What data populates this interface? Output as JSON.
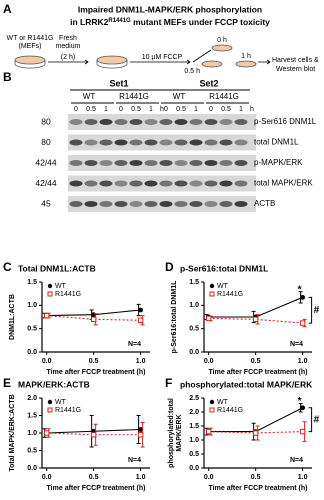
{
  "panel_a": {
    "label": "A",
    "title_line1": "Impaired DNM1L-MAPK/ERK phosphorylation",
    "title_line2": {
      "pre": "in LRRK2",
      "sup": "R1441G",
      "post": " mutant MEFs under FCCP toxicity"
    },
    "diagram": {
      "cells": [
        "WT or R1441G",
        "(MEFs)"
      ],
      "medium": [
        "Fresh",
        "medium",
        "(2 h)"
      ],
      "treatment": "10 µM FCCP",
      "times": [
        "0 h",
        "0.5 h",
        "1 h"
      ],
      "harvest": [
        "Harvest cells &",
        "Western blot"
      ]
    }
  },
  "panel_b": {
    "label": "B",
    "sets": [
      {
        "name": "Set1",
        "groups": [
          {
            "name": "WT",
            "lanes": [
              "0",
              "0.5",
              "1"
            ]
          },
          {
            "name": "R1441G",
            "lanes": [
              "0",
              "0.5",
              "1"
            ],
            "unit": "h"
          }
        ]
      },
      {
        "name": "Set2",
        "groups": [
          {
            "name": "WT",
            "lanes": [
              "0",
              "0.5",
              "1"
            ]
          },
          {
            "name": "R1441G",
            "lanes": [
              "0",
              "0.5",
              "1"
            ],
            "unit": "h"
          }
        ]
      }
    ],
    "rows": [
      {
        "mw": "80",
        "name": "p-Ser616 DNM1L"
      },
      {
        "mw": "80",
        "name": "total DNM1L"
      },
      {
        "mw": "42/44",
        "name": "p-MAPK/ERK"
      },
      {
        "mw": "42/44",
        "name": "total MAPK/ERK"
      },
      {
        "mw": "45",
        "name": "ACTB"
      }
    ]
  },
  "chart_data": [
    {
      "type": "line",
      "label": "C",
      "title": "Total DNM1L:ACTB",
      "y_label": "DNM1L:ACTB",
      "x_label": "Time after FCCP treatment (h)",
      "x": [
        0,
        0.5,
        1
      ],
      "xlim": [
        -0.05,
        1.1
      ],
      "xticks": [
        {
          "value": 0,
          "label": "0.0"
        },
        {
          "value": 0.5,
          "label": "0.5"
        },
        {
          "value": 1,
          "label": "1.0"
        }
      ],
      "ylim": [
        0,
        1.5
      ],
      "yticks": [
        {
          "value": 0,
          "label": "0.0"
        },
        {
          "value": 0.5,
          "label": "0.5"
        },
        {
          "value": 1,
          "label": "1.0"
        },
        {
          "value": 1.5,
          "label": "1.5"
        }
      ],
      "series": [
        {
          "name": "WT",
          "color": "#000000",
          "values": [
            0.78,
            0.8,
            0.9
          ],
          "errors": [
            0.05,
            0.1,
            0.12
          ]
        },
        {
          "name": "R1441G",
          "color": "#d62020",
          "values": [
            0.78,
            0.7,
            0.68
          ],
          "errors": [
            0.05,
            0.12,
            0.1
          ]
        }
      ],
      "annotations": {
        "n": "N=4"
      }
    },
    {
      "type": "line",
      "label": "D",
      "title": "p-Ser616:total DNM1L",
      "y_label": "p-Ser616:total DNM1L",
      "x_label": "Time after FCCP treatment (h)",
      "x": [
        0,
        0.5,
        1
      ],
      "xlim": [
        -0.05,
        1.1
      ],
      "xticks": [
        {
          "value": 0,
          "label": "0.0"
        },
        {
          "value": 0.5,
          "label": "0.5"
        },
        {
          "value": 1,
          "label": "1.0"
        }
      ],
      "ylim": [
        0,
        1.5
      ],
      "yticks": [
        {
          "value": 0,
          "label": "0.0"
        },
        {
          "value": 0.5,
          "label": "0.5"
        },
        {
          "value": 1,
          "label": "1.0"
        },
        {
          "value": 1.5,
          "label": "1.5"
        }
      ],
      "series": [
        {
          "name": "WT",
          "color": "#000000",
          "values": [
            0.75,
            0.75,
            1.17
          ],
          "errors": [
            0.05,
            0.12,
            0.12
          ]
        },
        {
          "name": "R1441G",
          "color": "#d62020",
          "values": [
            0.72,
            0.7,
            0.62
          ],
          "errors": [
            0.05,
            0.1,
            0.08
          ]
        }
      ],
      "annotations": {
        "star": "*",
        "hash": "#",
        "n": "N=4"
      }
    },
    {
      "type": "line",
      "label": "E",
      "title": "MAPK/ERK:ACTB",
      "y_label": "Total MAPK/ERK:ACTB",
      "x_label": "Time after FCCP treatment (h)",
      "x": [
        0,
        0.5,
        1
      ],
      "xlim": [
        -0.05,
        1.1
      ],
      "xticks": [
        {
          "value": 0,
          "label": "0.0"
        },
        {
          "value": 0.5,
          "label": "0.5"
        },
        {
          "value": 1,
          "label": "1.0"
        }
      ],
      "ylim": [
        0,
        2
      ],
      "yticks": [
        {
          "value": 0,
          "label": "0.0"
        },
        {
          "value": 0.5,
          "label": "0.5"
        },
        {
          "value": 1,
          "label": "1.0"
        },
        {
          "value": 1.5,
          "label": "1.5"
        },
        {
          "value": 2,
          "label": "2.0"
        }
      ],
      "series": [
        {
          "name": "WT",
          "color": "#000000",
          "values": [
            1.0,
            1.05,
            1.1
          ],
          "errors": [
            0.12,
            0.45,
            0.4
          ]
        },
        {
          "name": "R1441G",
          "color": "#d62020",
          "values": [
            1.0,
            0.95,
            0.95
          ],
          "errors": [
            0.12,
            0.3,
            0.35
          ]
        }
      ],
      "annotations": {
        "n": "N=4"
      }
    },
    {
      "type": "line",
      "label": "F",
      "title": "phosphorylated:total MAPK/ERK",
      "y_label": [
        "phosphorylated:total",
        "MAPK/ERK"
      ],
      "x_label": "Time after FCCP treatment (h)",
      "x": [
        0,
        0.5,
        1
      ],
      "xlim": [
        -0.05,
        1.1
      ],
      "xticks": [
        {
          "value": 0,
          "label": "0.0"
        },
        {
          "value": 0.5,
          "label": "0.5"
        },
        {
          "value": 1,
          "label": "1.0"
        }
      ],
      "ylim": [
        0,
        2.5
      ],
      "yticks": [
        {
          "value": 0,
          "label": "0.0"
        },
        {
          "value": 0.5,
          "label": "0.5"
        },
        {
          "value": 1,
          "label": "1.0"
        },
        {
          "value": 1.5,
          "label": "1.5"
        },
        {
          "value": 2,
          "label": "2.0"
        },
        {
          "value": 2.5,
          "label": "2.5"
        }
      ],
      "series": [
        {
          "name": "WT",
          "color": "#000000",
          "values": [
            1.3,
            1.3,
            2.15
          ],
          "errors": [
            0.12,
            0.3,
            0.15
          ]
        },
        {
          "name": "R1441G",
          "color": "#d62020",
          "values": [
            1.3,
            1.25,
            1.3
          ],
          "errors": [
            0.12,
            0.25,
            0.35
          ]
        }
      ],
      "annotations": {
        "star": "*",
        "hash": "#",
        "n": "N=4"
      }
    }
  ]
}
